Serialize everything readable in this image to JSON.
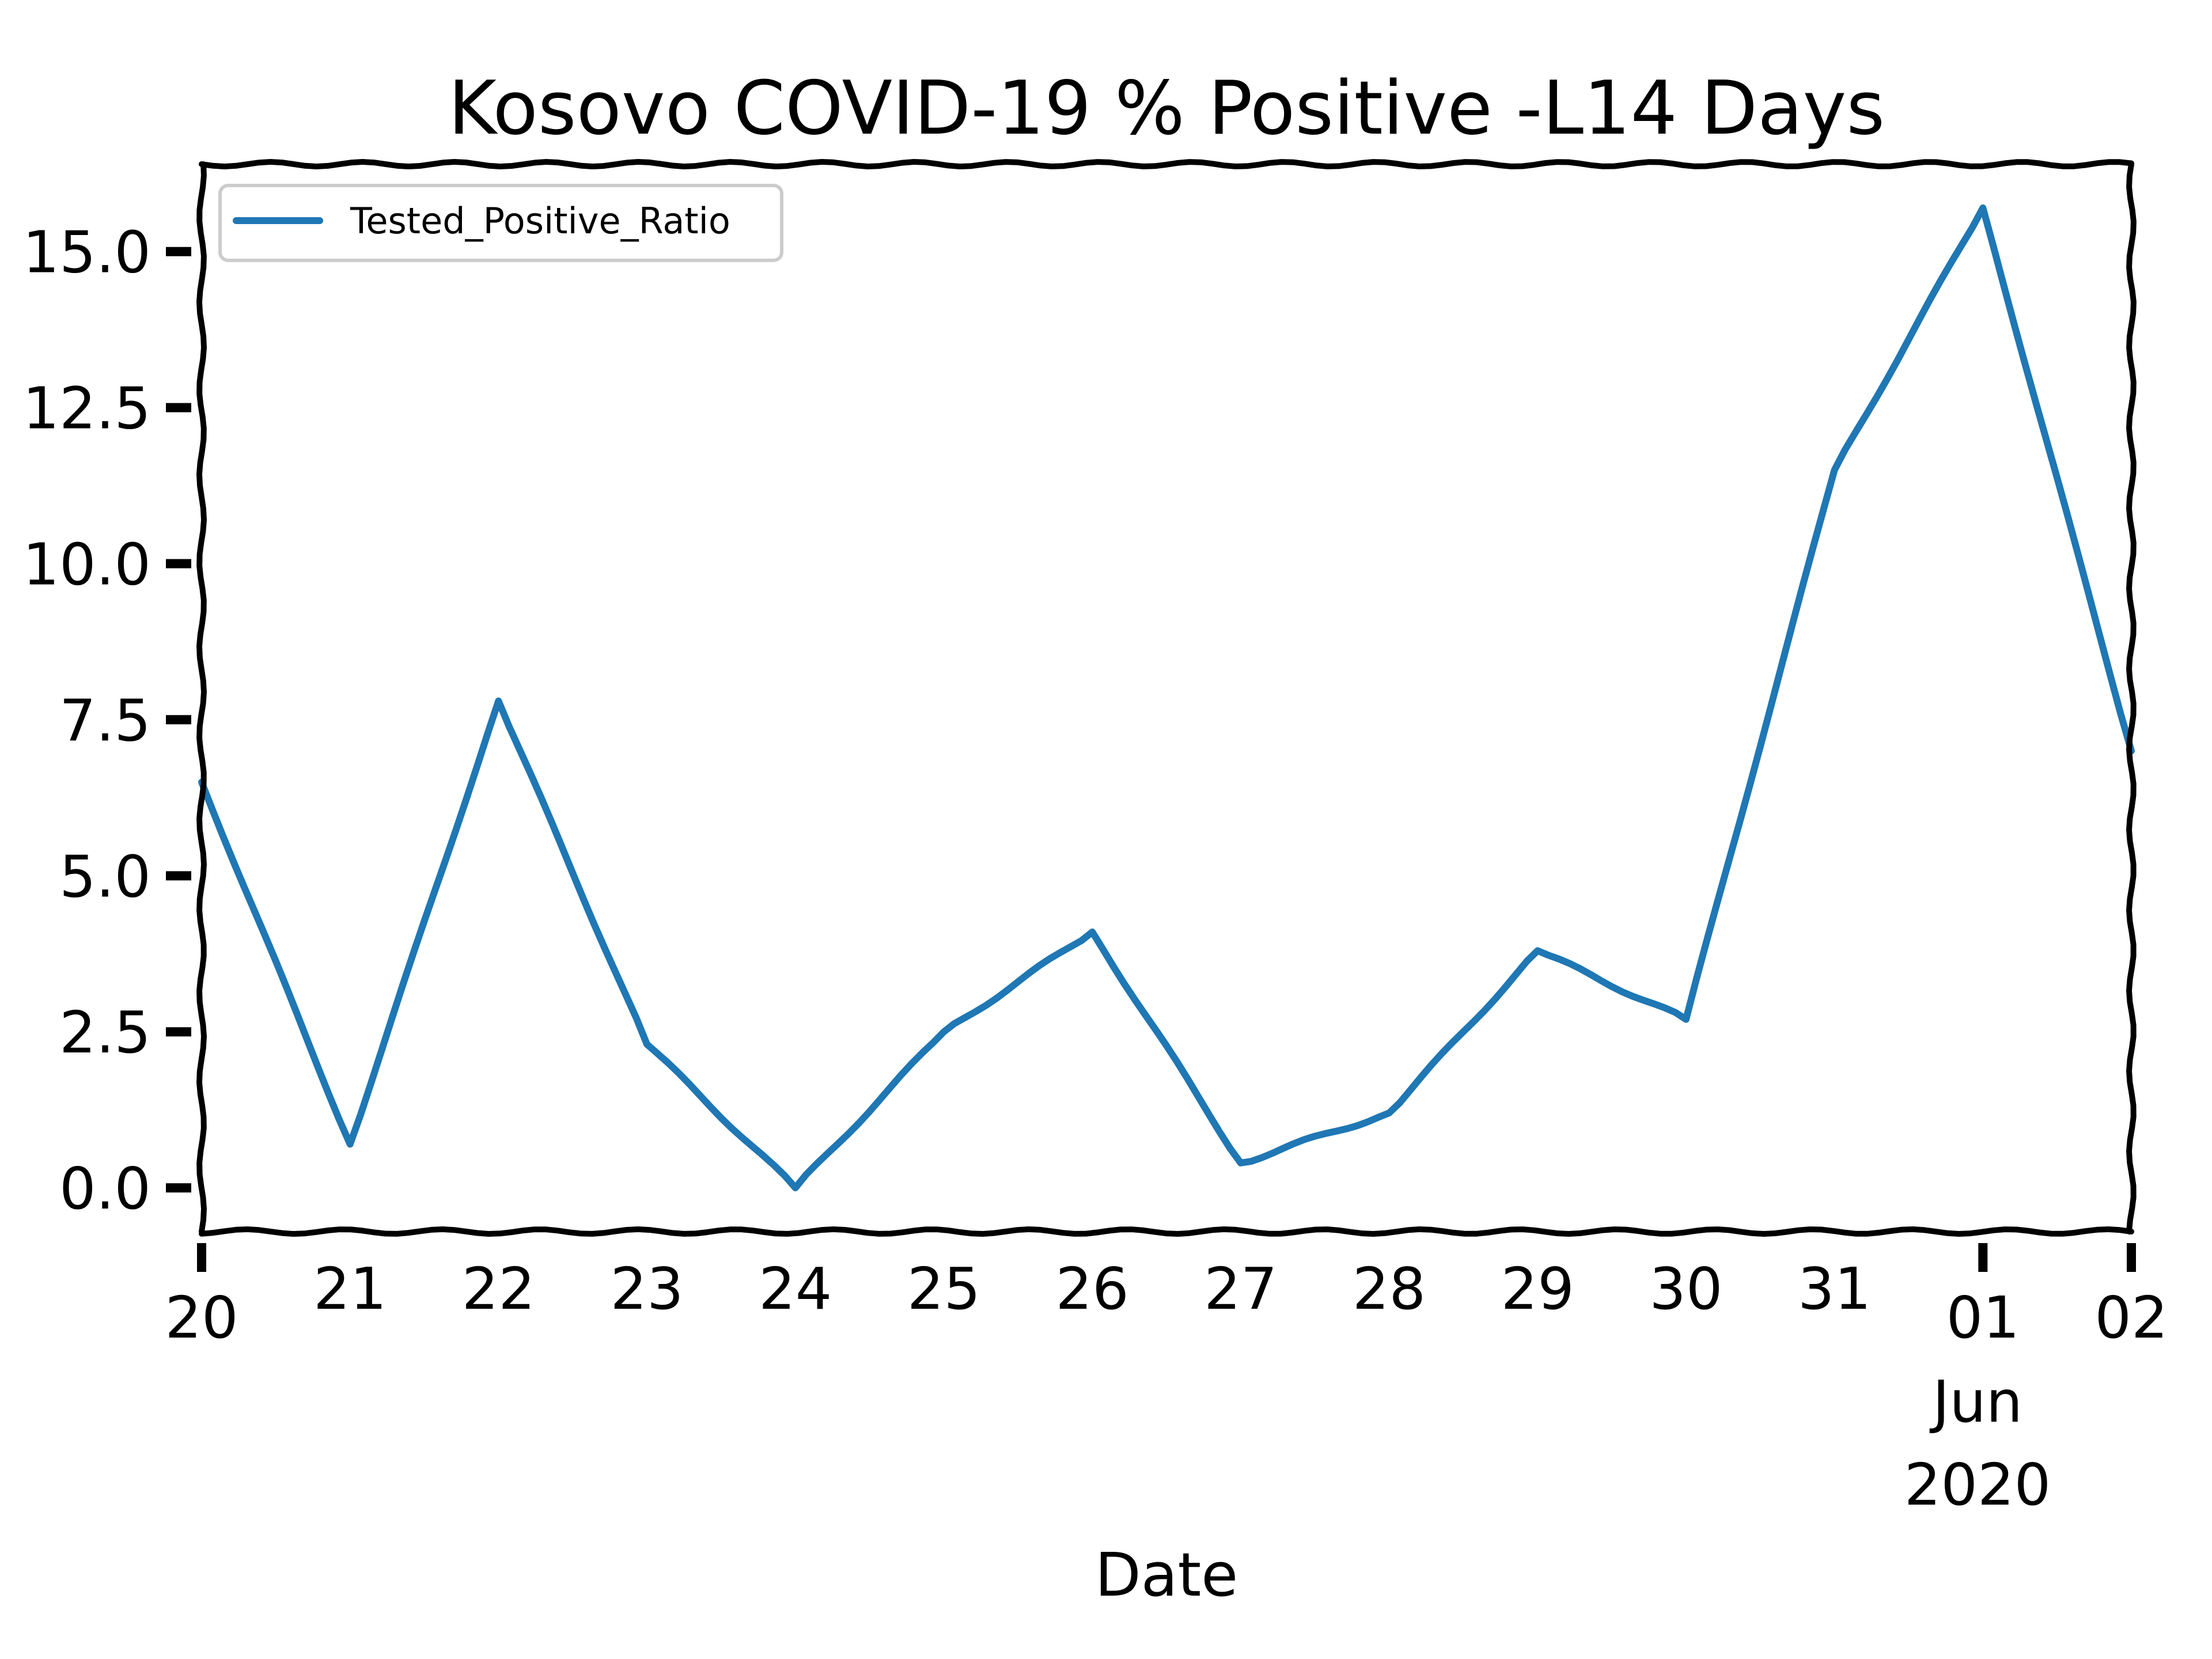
{
  "chart_data": {
    "type": "line",
    "title": "Kosovo COVID-19 % Positive -L14 Days",
    "xlabel": "Date",
    "ylabel": "",
    "x_dates": [
      "2020-05-20",
      "2020-05-21",
      "2020-05-22",
      "2020-05-23",
      "2020-05-24",
      "2020-05-25",
      "2020-05-26",
      "2020-05-27",
      "2020-05-28",
      "2020-05-29",
      "2020-05-30",
      "2020-05-31",
      "2020-06-01",
      "2020-06-02"
    ],
    "x_tick_labels": [
      "20",
      "21",
      "22",
      "23",
      "24",
      "25",
      "26",
      "27",
      "28",
      "29",
      "30",
      "31",
      "01",
      "02"
    ],
    "x_tick_sublabels": {
      "month": "Jun",
      "year": "2020"
    },
    "ylim": [
      -0.7,
      16.4
    ],
    "y_ticks": [
      0.0,
      2.5,
      5.0,
      7.5,
      10.0,
      12.5,
      15.0
    ],
    "y_tick_labels": [
      "0.0",
      "2.5",
      "5.0",
      "7.5",
      "10.0",
      "12.5",
      "15.0"
    ],
    "legend": {
      "position": "upper left",
      "entries": [
        "Tested_Positive_Ratio"
      ]
    },
    "grid": false,
    "series": [
      {
        "name": "Tested_Positive_Ratio",
        "color": "#1f77b4",
        "values": [
          6.5,
          0.7,
          7.8,
          2.3,
          0.0,
          2.5,
          4.1,
          0.4,
          1.2,
          3.8,
          2.7,
          11.5,
          15.7,
          7.0
        ]
      }
    ]
  }
}
